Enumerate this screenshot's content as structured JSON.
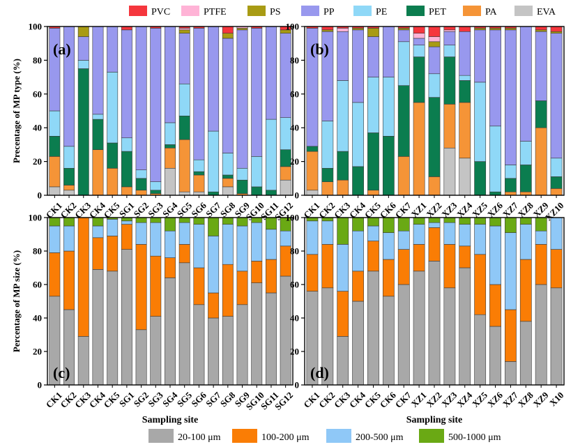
{
  "legends": {
    "type": [
      {
        "name": "PVC",
        "color": "#f5363d"
      },
      {
        "name": "PTFE",
        "color": "#ffb3d6"
      },
      {
        "name": "PS",
        "color": "#a89b14"
      },
      {
        "name": "PP",
        "color": "#9898ee"
      },
      {
        "name": "PE",
        "color": "#8fd8f7"
      },
      {
        "name": "PET",
        "color": "#0b7d4f"
      },
      {
        "name": "PA",
        "color": "#f59437"
      },
      {
        "name": "EVA",
        "color": "#c4c4c4"
      }
    ],
    "size": [
      {
        "name": "20-100 μm",
        "color": "#a8a8a8"
      },
      {
        "name": "100-200 μm",
        "color": "#fa7d05"
      },
      {
        "name": "200-500 μm",
        "color": "#8fc8f7"
      },
      {
        "name": "500-1000 μm",
        "color": "#6aa914"
      }
    ]
  },
  "chart_data": [
    {
      "type": "bar",
      "stacked": true,
      "panel_label": "(a)",
      "ylabel": "Precentage of MP type (%)",
      "xlabel": "",
      "ylim": [
        0,
        100
      ],
      "yticks": [
        0,
        20,
        40,
        60,
        80,
        100
      ],
      "categories": [
        "CK1",
        "CK2",
        "CK3",
        "CK4",
        "CK5",
        "SG1",
        "SG2",
        "SG3",
        "SG4",
        "SG5",
        "SG6",
        "SG7",
        "SG8",
        "SG9",
        "SG10",
        "SG11",
        "SG12"
      ],
      "series": [
        {
          "name": "EVA",
          "values": [
            5,
            3,
            0,
            0,
            0,
            0,
            0,
            0,
            16,
            2,
            2,
            0,
            5,
            0,
            0,
            0,
            9
          ]
        },
        {
          "name": "PA",
          "values": [
            18,
            3,
            0,
            27,
            16,
            5,
            3,
            1,
            12,
            31,
            10,
            0,
            5,
            1,
            0,
            0,
            8
          ]
        },
        {
          "name": "PET",
          "values": [
            12,
            10,
            75,
            18,
            15,
            21,
            7,
            2,
            2,
            14,
            2,
            2,
            2,
            8,
            5,
            3,
            10
          ]
        },
        {
          "name": "PE",
          "values": [
            15,
            13,
            5,
            3,
            42,
            8,
            5,
            5,
            13,
            19,
            7,
            36,
            13,
            7,
            18,
            42,
            19
          ]
        },
        {
          "name": "PP",
          "values": [
            49,
            71,
            14,
            52,
            27,
            64,
            85,
            91,
            57,
            30,
            78,
            62,
            68,
            82,
            76,
            55,
            50
          ]
        },
        {
          "name": "PS",
          "values": [
            0,
            0,
            6,
            0,
            0,
            0,
            0,
            0,
            0,
            2,
            0,
            0,
            3,
            1,
            0,
            0,
            2
          ]
        },
        {
          "name": "PTFE",
          "values": [
            0,
            0,
            0,
            0,
            0,
            0,
            0,
            0,
            0,
            1,
            0,
            0,
            0,
            1,
            0,
            0,
            0
          ]
        },
        {
          "name": "PVC",
          "values": [
            1,
            0,
            0,
            0,
            0,
            2,
            0,
            1,
            0,
            1,
            1,
            0,
            4,
            0,
            1,
            0,
            2
          ]
        }
      ]
    },
    {
      "type": "bar",
      "stacked": true,
      "panel_label": "(b)",
      "ylabel": "",
      "xlabel": "",
      "ylim": [
        0,
        100
      ],
      "yticks": [
        0,
        20,
        40,
        60,
        80,
        100
      ],
      "categories": [
        "CK1",
        "CK2",
        "CK3",
        "CK4",
        "CK5",
        "CK6",
        "CK7",
        "XZ1",
        "XZ2",
        "XZ3",
        "XZ4",
        "XZ5",
        "XZ6",
        "XZ7",
        "XZ8",
        "XZ9",
        "XZ10"
      ],
      "series": [
        {
          "name": "EVA",
          "values": [
            3,
            0,
            0,
            0,
            0,
            0,
            0,
            0,
            0,
            28,
            22,
            0,
            0,
            0,
            0,
            0,
            0
          ]
        },
        {
          "name": "PA",
          "values": [
            23,
            8,
            9,
            0,
            3,
            0,
            23,
            55,
            11,
            26,
            33,
            0,
            0,
            2,
            2,
            40,
            4
          ]
        },
        {
          "name": "PET",
          "values": [
            3,
            8,
            17,
            17,
            34,
            35,
            42,
            27,
            47,
            28,
            13,
            20,
            2,
            8,
            16,
            16,
            7
          ]
        },
        {
          "name": "PE",
          "values": [
            0,
            28,
            42,
            38,
            33,
            35,
            26,
            7,
            14,
            7,
            3,
            47,
            39,
            8,
            14,
            0,
            11
          ]
        },
        {
          "name": "PP",
          "values": [
            70,
            53,
            29,
            43,
            24,
            30,
            7,
            4,
            16,
            8,
            26,
            31,
            57,
            80,
            68,
            41,
            74
          ]
        },
        {
          "name": "PS",
          "values": [
            0,
            1,
            0,
            1,
            5,
            0,
            1,
            0,
            3,
            0,
            0,
            1,
            1,
            1,
            0,
            1,
            1
          ]
        },
        {
          "name": "PTFE",
          "values": [
            0,
            0,
            2,
            0,
            0,
            0,
            0,
            3,
            3,
            1,
            0,
            0,
            0,
            0,
            0,
            0,
            0
          ]
        },
        {
          "name": "PVC",
          "values": [
            1,
            2,
            1,
            1,
            1,
            0,
            1,
            4,
            6,
            2,
            3,
            1,
            1,
            1,
            0,
            2,
            3
          ]
        }
      ]
    },
    {
      "type": "bar",
      "stacked": true,
      "panel_label": "(c)",
      "ylabel": "Percentage of MP size (%)",
      "xlabel": "Sampling site",
      "ylim": [
        0,
        100
      ],
      "yticks": [
        0,
        20,
        40,
        60,
        80,
        100
      ],
      "categories": [
        "CK1",
        "CK2",
        "CK3",
        "CK4",
        "CK5",
        "SG1",
        "SG2",
        "SG3",
        "SG4",
        "SG5",
        "SG6",
        "SG7",
        "SG8",
        "SG9",
        "SG10",
        "SG11",
        "SG12"
      ],
      "series": [
        {
          "name": "20-100 μm",
          "values": [
            53,
            45,
            29,
            69,
            68,
            81,
            33,
            41,
            64,
            73,
            48,
            40,
            41,
            48,
            61,
            55,
            65
          ]
        },
        {
          "name": "100-200 μm",
          "values": [
            26,
            35,
            71,
            19,
            21,
            15,
            51,
            36,
            12,
            11,
            22,
            15,
            31,
            20,
            13,
            20,
            18
          ]
        },
        {
          "name": "200-500 μm",
          "values": [
            16,
            15,
            0,
            7,
            10,
            2,
            13,
            20,
            16,
            13,
            26,
            34,
            24,
            27,
            23,
            18,
            9
          ]
        },
        {
          "name": "500-1000 μm",
          "values": [
            5,
            5,
            0,
            5,
            1,
            2,
            3,
            3,
            8,
            3,
            4,
            11,
            4,
            5,
            3,
            7,
            8
          ]
        }
      ]
    },
    {
      "type": "bar",
      "stacked": true,
      "panel_label": "(d)",
      "ylabel": "",
      "xlabel": "Sampling site",
      "ylim": [
        0,
        100
      ],
      "yticks": [
        0,
        20,
        40,
        60,
        80,
        100
      ],
      "categories": [
        "CK1",
        "CK2",
        "CK3",
        "CK4",
        "CK5",
        "CK6",
        "CK7",
        "XZ1",
        "XZ2",
        "XZ3",
        "XZ4",
        "XZ5",
        "XZ6",
        "XZ7",
        "XZ8",
        "XZ9",
        "X10"
      ],
      "series": [
        {
          "name": "20-100 μm",
          "values": [
            56,
            58,
            29,
            50,
            68,
            53,
            60,
            68,
            74,
            58,
            70,
            42,
            35,
            14,
            38,
            60,
            58
          ]
        },
        {
          "name": "100-200 μm",
          "values": [
            22,
            26,
            27,
            18,
            18,
            22,
            21,
            16,
            20,
            26,
            13,
            36,
            25,
            31,
            37,
            24,
            23
          ]
        },
        {
          "name": "200-500 μm",
          "values": [
            20,
            14,
            28,
            24,
            9,
            16,
            11,
            12,
            3,
            13,
            13,
            18,
            35,
            46,
            21,
            8,
            19
          ]
        },
        {
          "name": "500-1000 μm",
          "values": [
            2,
            2,
            16,
            8,
            5,
            9,
            8,
            4,
            3,
            3,
            4,
            4,
            5,
            9,
            4,
            8,
            0
          ]
        }
      ]
    }
  ]
}
